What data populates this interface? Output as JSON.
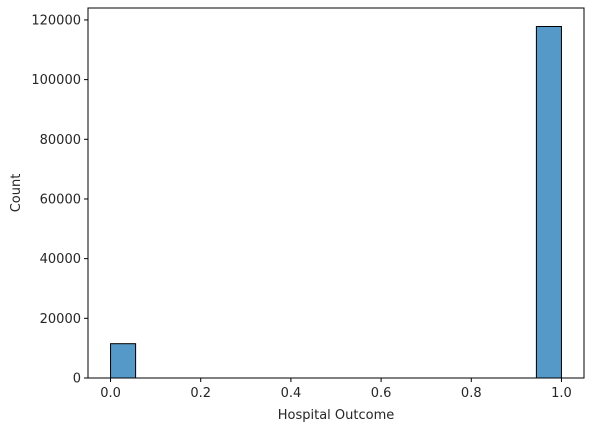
{
  "chart_data": {
    "type": "bar",
    "title": "",
    "xlabel": "Hospital Outcome",
    "ylabel": "Count",
    "xlim": [
      -0.05,
      1.05
    ],
    "ylim": [
      0,
      124000
    ],
    "bin_edges": [
      0,
      0.0556,
      0.1111,
      0.1667,
      0.2222,
      0.2778,
      0.3333,
      0.3889,
      0.4444,
      0.5,
      0.5556,
      0.6111,
      0.6667,
      0.7222,
      0.7778,
      0.8333,
      0.8889,
      0.9444,
      1.0
    ],
    "values": [
      11500,
      0,
      0,
      0,
      0,
      0,
      0,
      0,
      0,
      0,
      0,
      0,
      0,
      0,
      0,
      0,
      0,
      117800
    ],
    "x_ticks": [
      0.0,
      0.2,
      0.4,
      0.6,
      0.8,
      1.0
    ],
    "x_tick_labels": [
      "0.0",
      "0.2",
      "0.4",
      "0.6",
      "0.8",
      "1.0"
    ],
    "y_ticks": [
      0,
      20000,
      40000,
      60000,
      80000,
      100000,
      120000
    ],
    "y_tick_labels": [
      "0",
      "20000",
      "40000",
      "60000",
      "80000",
      "100000",
      "120000"
    ],
    "grid": false,
    "bar_color": "#5499c7",
    "edge_color": "#000000"
  }
}
